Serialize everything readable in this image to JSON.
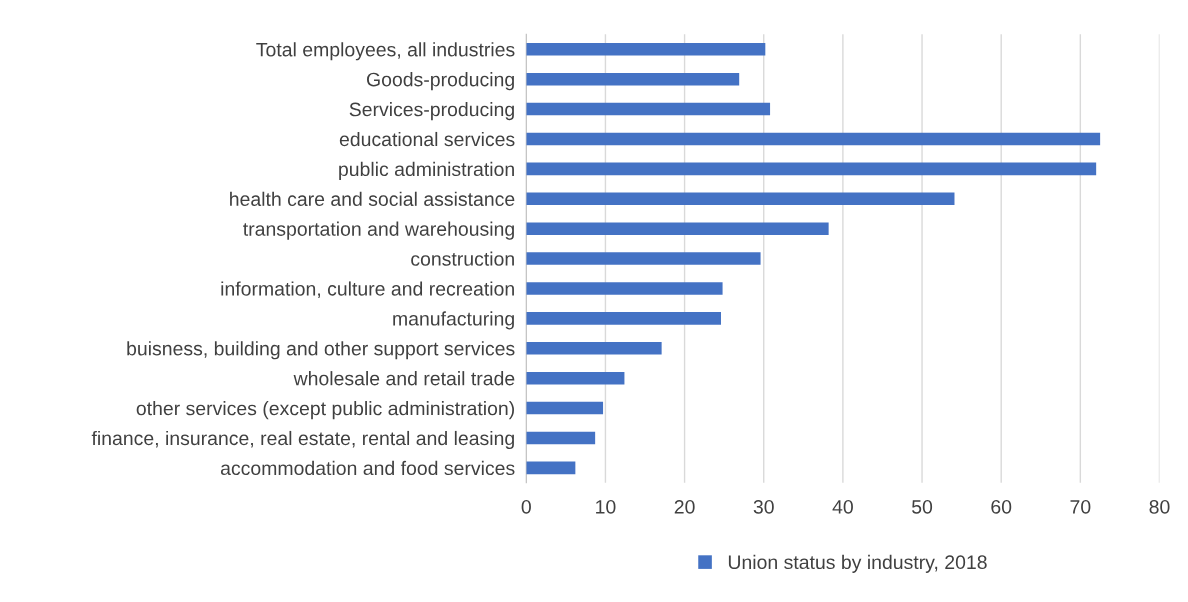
{
  "chart_data": {
    "type": "bar",
    "orientation": "horizontal",
    "categories": [
      "Total employees, all industries",
      "Goods-producing",
      "Services-producing",
      "educational services",
      "public administration",
      "health care and social assistance",
      "transportation and warehousing",
      "construction",
      "information, culture and recreation",
      "manufacturing",
      "buisness, building and other support services",
      "wholesale and retail trade",
      "other services (except public administration)",
      "finance, insurance, real estate, rental and leasing",
      "accommodation and food services"
    ],
    "series": [
      {
        "name": "Union status by industry, 2018",
        "color": "#4472c4",
        "values": [
          30.2,
          26.9,
          30.8,
          72.5,
          72.0,
          54.1,
          38.2,
          29.6,
          24.8,
          24.6,
          17.1,
          12.4,
          9.7,
          8.7,
          6.2
        ]
      }
    ],
    "xlim": [
      0,
      80
    ],
    "xticks": [
      0,
      10,
      20,
      30,
      40,
      50,
      60,
      70,
      80
    ],
    "grid": "x",
    "legend": "bottom"
  }
}
